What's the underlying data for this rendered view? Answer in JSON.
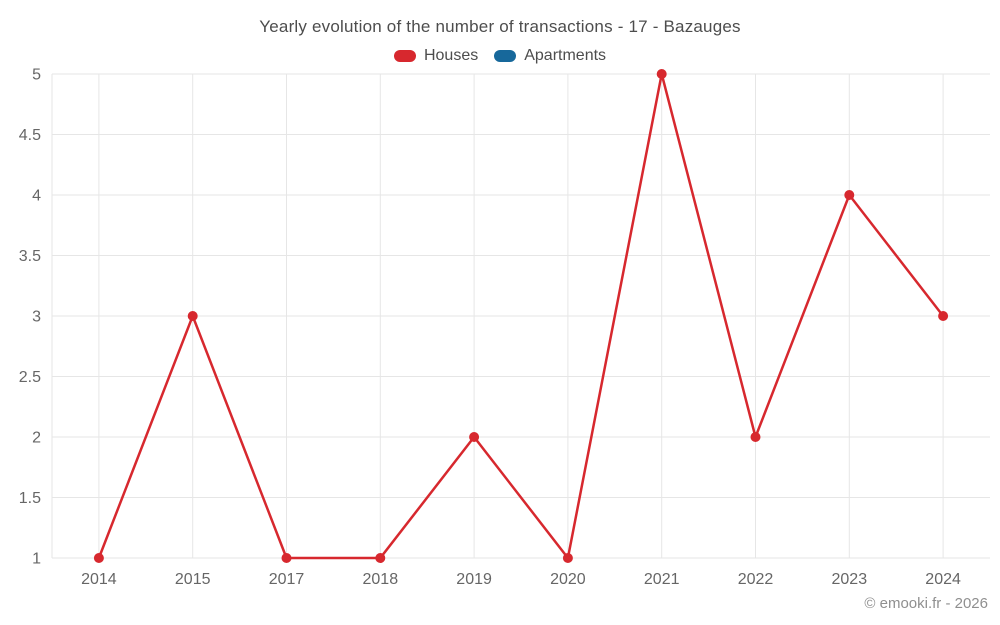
{
  "watermark": "© emooki.fr - 2026",
  "chart_data": {
    "type": "line",
    "title": "Yearly evolution of the number of transactions - 17 - Bazauges",
    "categories": [
      "2014",
      "2015",
      "2017",
      "2018",
      "2019",
      "2020",
      "2021",
      "2022",
      "2023",
      "2024"
    ],
    "series": [
      {
        "name": "Houses",
        "color": "#d7282e",
        "marker": "circle",
        "values": [
          1,
          3,
          1,
          1,
          2,
          1,
          5,
          2,
          4,
          3
        ]
      },
      {
        "name": "Apartments",
        "color": "#17689b",
        "marker": "circle",
        "values": []
      }
    ],
    "xlabel": "",
    "ylabel": "",
    "ylim": [
      1,
      5
    ],
    "ytick_step": 0.5,
    "yticks": [
      "1",
      "1.5",
      "2",
      "2.5",
      "3",
      "3.5",
      "4",
      "4.5",
      "5"
    ],
    "grid": true,
    "legend_position": "top",
    "colors": {
      "grid": "#e6e6e6",
      "axis_text": "#666666",
      "title_text": "#4d4d4d",
      "legend_text": "#4d4d4d",
      "watermark_text": "#8f8f8f",
      "background": "#ffffff"
    }
  }
}
